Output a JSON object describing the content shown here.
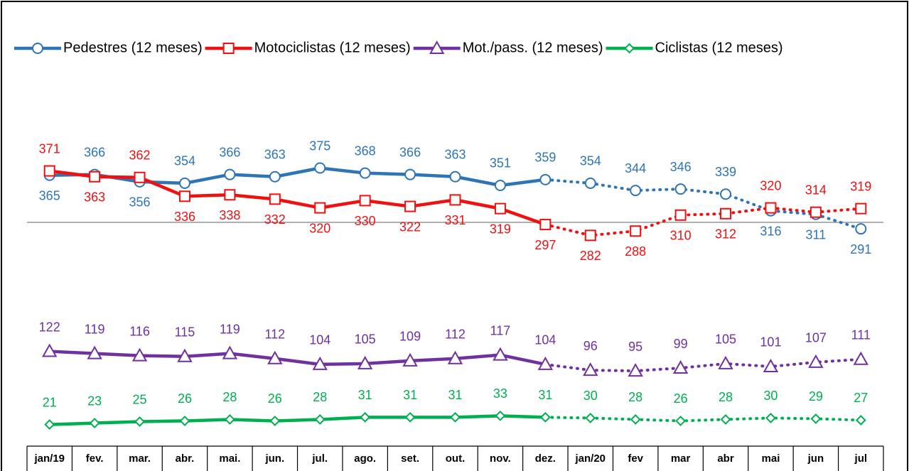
{
  "chart_data": {
    "type": "line",
    "categories": [
      "jan/19",
      "fev.",
      "mar.",
      "abr.",
      "mai.",
      "jun.",
      "jul.",
      "ago.",
      "set.",
      "out.",
      "nov.",
      "dez.",
      "jan/20",
      "fev",
      "mar",
      "abr",
      "mai",
      "jun",
      "jul"
    ],
    "series": [
      {
        "name": "Pedestres (12 meses)",
        "color": "#2e75b6",
        "marker": "circle",
        "values": [
          365,
          366,
          356,
          354,
          366,
          363,
          375,
          368,
          366,
          363,
          351,
          359,
          354,
          344,
          346,
          339,
          316,
          311,
          291
        ]
      },
      {
        "name": "Motociclistas (12 meses)",
        "color": "#f01010",
        "marker": "square",
        "values": [
          371,
          363,
          362,
          336,
          338,
          332,
          320,
          330,
          322,
          331,
          319,
          297,
          282,
          288,
          310,
          312,
          320,
          314,
          319
        ]
      },
      {
        "name": "Mot./pass. (12 meses)",
        "color": "#7030a0",
        "marker": "triangle",
        "values": [
          122,
          119,
          116,
          115,
          119,
          112,
          104,
          105,
          109,
          112,
          117,
          104,
          96,
          95,
          99,
          105,
          101,
          107,
          111
        ]
      },
      {
        "name": "Ciclistas (12 meses)",
        "color": "#00b050",
        "marker": "diamond",
        "values": [
          21,
          23,
          25,
          26,
          28,
          26,
          28,
          31,
          31,
          31,
          33,
          31,
          30,
          28,
          26,
          28,
          30,
          29,
          27
        ]
      }
    ],
    "dotted_from": "dez.",
    "ylim": [
      0,
      600
    ],
    "reference_line": 300,
    "legend": "top"
  }
}
